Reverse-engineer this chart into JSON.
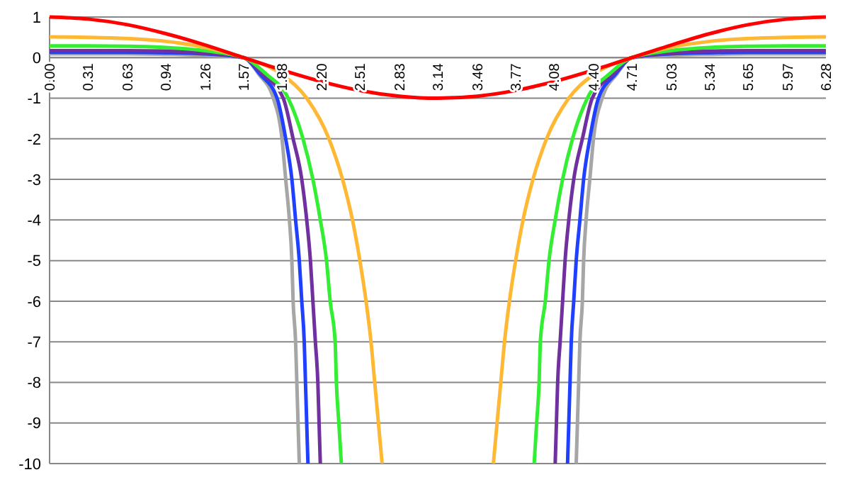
{
  "chart_data": {
    "type": "line",
    "xlim": [
      0,
      6.28
    ],
    "ylim": [
      -10,
      1
    ],
    "yticks": [
      -10,
      -9,
      -8,
      -7,
      -6,
      -5,
      -4,
      -3,
      -2,
      -1,
      0,
      1
    ],
    "xticks": [
      {
        "value": 0,
        "label": "0.00"
      },
      0.31,
      0.63,
      0.94,
      1.26,
      1.57,
      1.88,
      {
        "value": 2.2,
        "label": "2.20"
      },
      2.51,
      2.83,
      3.14,
      3.46,
      3.77,
      4.08,
      {
        "value": 4.4,
        "label": "4.40"
      },
      4.71,
      5.03,
      5.34,
      5.65,
      5.97,
      6.28
    ],
    "grid": "y",
    "marker": "none",
    "line_style": "solid",
    "series": [
      {
        "color": "#a6a6a6",
        "x": [
          0,
          0.31,
          0.63,
          0.94,
          1.26,
          1.57,
          1.69,
          1.81,
          1.88,
          1.91,
          1.94,
          1.96,
          1.97,
          1.99,
          2.0,
          2.01,
          2.02,
          3.14,
          4.26,
          4.27,
          4.28,
          4.29,
          4.31,
          4.32,
          4.34,
          4.37,
          4.4,
          4.47,
          4.59,
          4.71,
          5.02,
          5.34,
          5.65,
          5.97,
          6.28
        ],
        "values": [
          0.09,
          0.09,
          0.09,
          0.08,
          0.06,
          0,
          -0.4,
          -1,
          -2,
          -3,
          -4,
          -5,
          -6,
          -7,
          -8,
          -9,
          -10,
          null,
          -10,
          -9,
          -8,
          -7,
          -6,
          -5,
          -4,
          -3,
          -2,
          -1,
          -0.4,
          0,
          0.06,
          0.08,
          0.09,
          0.09,
          0.09
        ]
      },
      {
        "color": "#2040ff",
        "x": [
          0,
          0.31,
          0.63,
          0.94,
          1.26,
          1.57,
          1.7,
          1.84,
          1.91,
          1.96,
          1.99,
          2.02,
          2.04,
          2.06,
          2.07,
          2.08,
          2.09,
          3.14,
          4.19,
          4.2,
          4.21,
          4.22,
          4.24,
          4.26,
          4.29,
          4.32,
          4.37,
          4.44,
          4.58,
          4.71,
          5.02,
          5.34,
          5.65,
          5.97,
          6.28
        ],
        "values": [
          0.13,
          0.13,
          0.13,
          0.12,
          0.09,
          0,
          -0.4,
          -1,
          -2,
          -3,
          -4,
          -5,
          -6,
          -7,
          -8,
          -9,
          -10,
          null,
          -10,
          -9,
          -8,
          -7,
          -6,
          -5,
          -4,
          -3,
          -2,
          -1,
          -0.4,
          0,
          0.09,
          0.12,
          0.13,
          0.13,
          0.13
        ]
      },
      {
        "color": "#7030a0",
        "x": [
          0,
          0.31,
          0.63,
          0.94,
          1.26,
          1.57,
          1.72,
          1.89,
          1.97,
          2.04,
          2.08,
          2.11,
          2.13,
          2.15,
          2.17,
          2.18,
          2.19,
          3.14,
          4.09,
          4.1,
          4.11,
          4.13,
          4.15,
          4.17,
          4.2,
          4.24,
          4.31,
          4.39,
          4.56,
          4.71,
          5.02,
          5.34,
          5.65,
          5.97,
          6.28
        ],
        "values": [
          0.17,
          0.17,
          0.17,
          0.16,
          0.11,
          0,
          -0.4,
          -1,
          -2,
          -3,
          -4,
          -5,
          -6,
          -7,
          -8,
          -9,
          -10,
          null,
          -10,
          -9,
          -8,
          -7,
          -6,
          -5,
          -4,
          -3,
          -2,
          -1,
          -0.4,
          0,
          0.11,
          0.16,
          0.17,
          0.17,
          0.17
        ]
      },
      {
        "color": "#33ee33",
        "x": [
          0,
          0.31,
          0.63,
          0.94,
          1.26,
          1.57,
          1.75,
          1.93,
          2.05,
          2.13,
          2.19,
          2.24,
          2.27,
          2.31,
          2.32,
          2.34,
          2.36,
          3.14,
          3.92,
          3.94,
          3.96,
          3.97,
          4.01,
          4.04,
          4.09,
          4.15,
          4.23,
          4.35,
          4.53,
          4.71,
          5.02,
          5.34,
          5.65,
          5.97,
          6.28
        ],
        "values": [
          0.29,
          0.29,
          0.28,
          0.25,
          0.17,
          0,
          -0.4,
          -1,
          -2,
          -3,
          -4,
          -5,
          -6,
          -7,
          -8,
          -9,
          -10,
          null,
          -10,
          -9,
          -8,
          -7,
          -6,
          -5,
          -4,
          -3,
          -2,
          -1,
          -0.4,
          0,
          0.17,
          0.25,
          0.28,
          0.29,
          0.29
        ]
      },
      {
        "color": "#ffb833",
        "x": [
          0,
          0.31,
          0.63,
          0.94,
          1.26,
          1.57,
          1.88,
          2.08,
          2.26,
          2.37,
          2.45,
          2.51,
          2.56,
          2.6,
          2.63,
          2.66,
          2.69,
          3.14,
          3.59,
          3.62,
          3.65,
          3.68,
          3.72,
          3.77,
          3.83,
          3.91,
          4.02,
          4.2,
          4.4,
          4.71,
          5.02,
          5.34,
          5.65,
          5.97,
          6.28
        ],
        "values": [
          0.51,
          0.5,
          0.47,
          0.4,
          0.25,
          0,
          -0.42,
          -1,
          -2,
          -3,
          -4,
          -5,
          -6,
          -7,
          -8,
          -9,
          -10,
          null,
          -10,
          -9,
          -8,
          -7,
          -6,
          -5,
          -4,
          -3,
          -2,
          -1,
          -0.42,
          0,
          0.25,
          0.4,
          0.47,
          0.5,
          0.51
        ]
      },
      {
        "color": "#ff0000",
        "x": [
          0,
          0.31,
          0.63,
          0.94,
          1.26,
          1.57,
          1.8,
          1.96,
          2.2,
          2.51,
          2.83,
          3.14,
          3.46,
          3.77,
          4.08,
          4.32,
          4.48,
          4.71,
          5.03,
          5.34,
          5.65,
          5.97,
          6.28
        ],
        "values": [
          1,
          0.95,
          0.81,
          0.59,
          0.31,
          0,
          -0.23,
          -0.38,
          -0.59,
          -0.81,
          -0.95,
          -1,
          -0.95,
          -0.81,
          -0.59,
          -0.38,
          -0.23,
          0,
          0.31,
          0.59,
          0.81,
          0.95,
          1
        ]
      }
    ]
  }
}
